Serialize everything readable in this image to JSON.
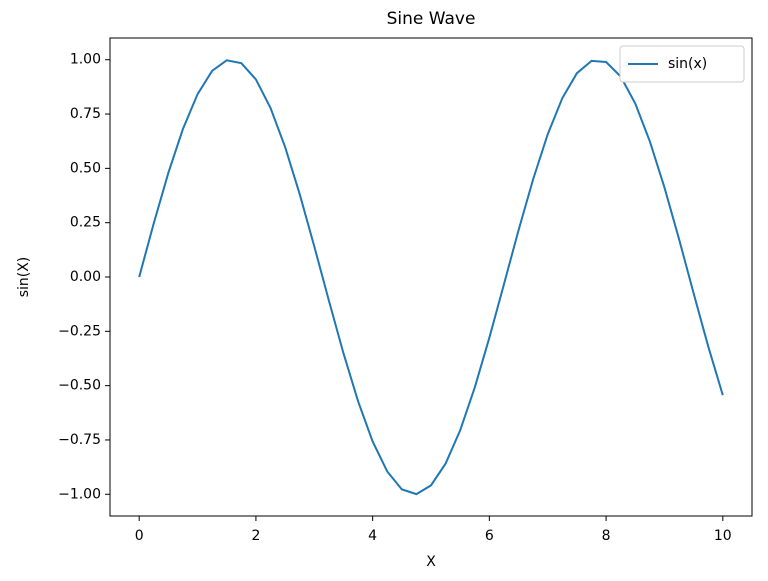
{
  "chart_data": {
    "type": "line",
    "title": "Sine Wave",
    "xlabel": "X",
    "ylabel": "sin(X)",
    "x": [
      0,
      0.25,
      0.5,
      0.75,
      1,
      1.25,
      1.5,
      1.75,
      2,
      2.25,
      2.5,
      2.75,
      3,
      3.25,
      3.5,
      3.75,
      4,
      4.25,
      4.5,
      4.75,
      5,
      5.25,
      5.5,
      5.75,
      6,
      6.25,
      6.5,
      6.75,
      7,
      7.25,
      7.5,
      7.75,
      8,
      8.25,
      8.5,
      8.75,
      9,
      9.25,
      9.5,
      9.75,
      10
    ],
    "series": [
      {
        "name": "sin(x)",
        "color": "#1f77b4",
        "values": [
          0,
          0.2474,
          0.4794,
          0.6816,
          0.8415,
          0.949,
          0.9975,
          0.984,
          0.9093,
          0.7781,
          0.5985,
          0.3817,
          0.1411,
          -0.1082,
          -0.3508,
          -0.5716,
          -0.7568,
          -0.895,
          -0.9775,
          -0.9993,
          -0.9589,
          -0.8589,
          -0.7055,
          -0.5083,
          -0.2794,
          -0.0332,
          0.2151,
          0.45,
          0.657,
          0.8231,
          0.938,
          0.9946,
          0.9894,
          0.9228,
          0.7985,
          0.624,
          0.4121,
          0.1743,
          -0.0752,
          -0.3195,
          -0.544
        ]
      }
    ],
    "xlim": [
      -0.5,
      10.5
    ],
    "xticks": [
      0,
      2,
      4,
      6,
      8,
      10
    ],
    "ylim": [
      -1.1,
      1.1
    ],
    "yticks": [
      {
        "value": -1,
        "label": "−1.00"
      },
      {
        "value": -0.75,
        "label": "−0.75"
      },
      {
        "value": -0.5,
        "label": "−0.50"
      },
      {
        "value": -0.25,
        "label": "−0.25"
      },
      {
        "value": 0,
        "label": "0.00"
      },
      {
        "value": 0.25,
        "label": "0.25"
      },
      {
        "value": 0.5,
        "label": "0.50"
      },
      {
        "value": 0.75,
        "label": "0.75"
      },
      {
        "value": 1,
        "label": "1.00"
      }
    ],
    "legend": "upper right",
    "grid": false
  }
}
